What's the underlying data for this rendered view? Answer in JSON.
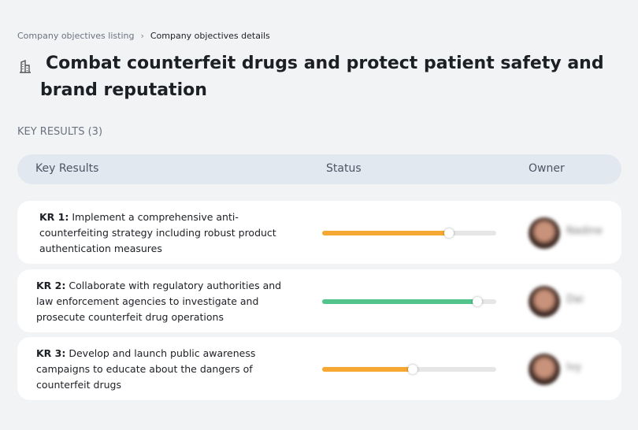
{
  "breadcrumb": {
    "items": [
      "Company objectives listing",
      "Company objectives details"
    ]
  },
  "header": {
    "title": "Combat counterfeit drugs and protect patient safety and brand reputation"
  },
  "section": {
    "title": "KEY RESULTS (3)"
  },
  "table": {
    "columns": [
      "Key Results",
      "Status",
      "Owner"
    ],
    "rows": [
      {
        "label": "KR 1:",
        "text": "Implement a comprehensive anti-counterfeiting strategy including robust product authentication measures",
        "progress": 73,
        "color": "#f7a833",
        "owner": "Nadine"
      },
      {
        "label": "KR 2:",
        "text": "Collaborate with regulatory authorities and law enforcement agencies to investigate and prosecute counterfeit drug operations",
        "progress": 89,
        "color": "#52c48c",
        "owner": "Dai"
      },
      {
        "label": "KR 3:",
        "text": "Develop and launch public awareness campaigns to educate about the dangers of counterfeit drugs",
        "progress": 52,
        "color": "#f7a833",
        "owner": "Ivy"
      }
    ]
  }
}
